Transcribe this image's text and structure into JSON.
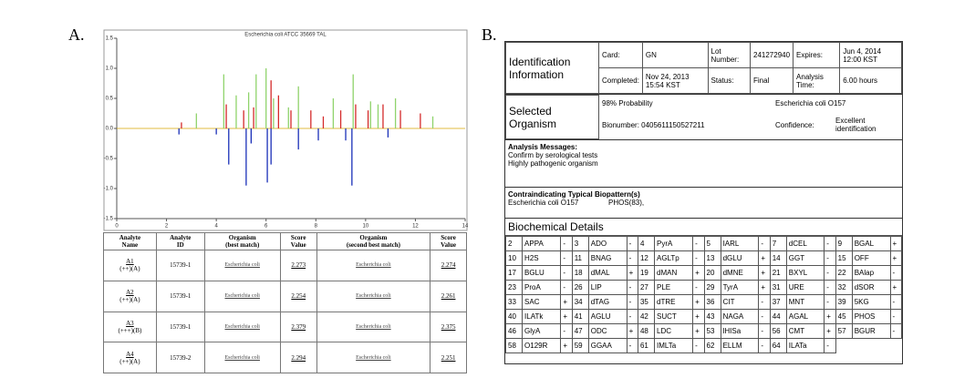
{
  "panel_a_label": "A.",
  "panel_b_label": "B.",
  "chart_data": {
    "type": "bar",
    "title": "Escherichia coli ATCC 35669 TAL",
    "xlim": [
      0,
      14
    ],
    "xticks": [
      0,
      2,
      4,
      6,
      8,
      10,
      12,
      14
    ],
    "ylim": [
      -1.5,
      1.5
    ],
    "yticks": [
      {
        "value": 1.5,
        "label": "1.5"
      },
      {
        "value": 1,
        "label": "1.0"
      },
      {
        "value": 0.5,
        "label": "0.5"
      },
      {
        "value": 0,
        "label": "0.0"
      },
      {
        "value": -0.5,
        "label": "-0.5"
      },
      {
        "value": -1,
        "label": "-1.0"
      },
      {
        "value": -1.5,
        "label": "-1.5"
      }
    ],
    "series": [
      {
        "color": "#8fd36b",
        "x": [
          3.2,
          4.3,
          4.8,
          5.3,
          5.6,
          6.0,
          6.3,
          6.9,
          7.3,
          8.7,
          9.5,
          10.2,
          10.5,
          11.2,
          12.7
        ],
        "values": [
          0.25,
          0.9,
          0.55,
          0.6,
          0.9,
          1.0,
          0.5,
          0.35,
          0.7,
          0.5,
          0.9,
          0.45,
          0.4,
          0.5,
          0.2
        ]
      },
      {
        "color": "#d42a2a",
        "x": [
          2.6,
          4.4,
          5.1,
          5.5,
          6.2,
          6.5,
          7.0,
          7.8,
          8.3,
          9.0,
          9.6,
          10.1,
          10.7,
          11.4,
          12.2
        ],
        "values": [
          0.1,
          0.4,
          0.3,
          0.35,
          0.8,
          0.55,
          0.3,
          0.3,
          0.2,
          0.3,
          0.4,
          0.3,
          0.4,
          0.3,
          0.25
        ]
      },
      {
        "color": "#1a2fb8",
        "x": [
          2.5,
          4.0,
          4.5,
          5.2,
          5.4,
          6.05,
          6.2,
          7.3,
          8.1,
          9.2,
          9.45,
          10.9
        ],
        "values": [
          -0.1,
          -0.1,
          -0.6,
          -0.95,
          -0.25,
          -0.9,
          -0.6,
          -0.35,
          -0.2,
          -0.2,
          -0.95,
          -0.15
        ]
      }
    ]
  },
  "table_a": {
    "headers": [
      [
        "Analyte",
        "Name"
      ],
      [
        "Analyte",
        "ID"
      ],
      [
        "Organism",
        "(best match)"
      ],
      [
        "Score",
        "Value"
      ],
      [
        "Organism",
        "(second best match)"
      ],
      [
        "Score",
        "Value"
      ]
    ],
    "rows": [
      [
        "A1",
        "(++)(A)",
        "15739-1",
        "Escherichia coli",
        "2.273",
        "Escherichia coli",
        "2.274"
      ],
      [
        "A2",
        "(++)(A)",
        "15739-1",
        "Escherichia coli",
        "2.254",
        "Escherichia coli",
        "2.261"
      ],
      [
        "A3",
        "(+++)(B)",
        "15739-1",
        "Escherichia coli",
        "2.379",
        "Escherichia coli",
        "2.375"
      ],
      [
        "A4",
        "(++)(A)",
        "15739-2",
        "Escherichia coli",
        "2.294",
        "Escherichia coli",
        "2.251"
      ]
    ]
  },
  "report": {
    "id_info": {
      "heading": "Identification Information",
      "fields": [
        [
          "Card:",
          "GN",
          "Lot Number:",
          "241272940",
          "Expires:",
          "Jun 4, 2014 12:00 KST"
        ],
        [
          "Completed:",
          "Nov 24, 2013 15:54 KST",
          "Status:",
          "Final",
          "Analysis Time:",
          "6.00 hours"
        ]
      ]
    },
    "selected": {
      "heading": "Selected Organism",
      "probability": "98% Probability",
      "organism": "Escherichia coli O157",
      "bionumber": "Bionumber: 0405611150527211",
      "confidence_label": "Confidence:",
      "confidence": "Excellent identification"
    },
    "messages": {
      "heading": "Analysis Messages:",
      "lines": [
        "Confirm by serological tests",
        "Highly pathogenic organism"
      ]
    },
    "contra": {
      "heading": "Contraindicating Typical Biopattern(s)",
      "organism": "Escherichia coli O157",
      "pattern": "PHOS(83),"
    },
    "biochem": {
      "heading": "Biochemical Details",
      "rows": [
        [
          [
            2,
            "APPA",
            "-"
          ],
          [
            3,
            "ADO",
            "-"
          ],
          [
            4,
            "PyrA",
            "-"
          ],
          [
            5,
            "IARL",
            "-"
          ],
          [
            7,
            "dCEL",
            "-"
          ],
          [
            9,
            "BGAL",
            "+"
          ]
        ],
        [
          [
            10,
            "H2S",
            "-"
          ],
          [
            11,
            "BNAG",
            "-"
          ],
          [
            12,
            "AGLTp",
            "-"
          ],
          [
            13,
            "dGLU",
            "+"
          ],
          [
            14,
            "GGT",
            "-"
          ],
          [
            15,
            "OFF",
            "+"
          ]
        ],
        [
          [
            17,
            "BGLU",
            "-"
          ],
          [
            18,
            "dMAL",
            "+"
          ],
          [
            19,
            "dMAN",
            "+"
          ],
          [
            20,
            "dMNE",
            "+"
          ],
          [
            21,
            "BXYL",
            "-"
          ],
          [
            22,
            "BAlap",
            "-"
          ]
        ],
        [
          [
            23,
            "ProA",
            "-"
          ],
          [
            26,
            "LIP",
            "-"
          ],
          [
            27,
            "PLE",
            "-"
          ],
          [
            29,
            "TyrA",
            "+"
          ],
          [
            31,
            "URE",
            "-"
          ],
          [
            32,
            "dSOR",
            "+"
          ]
        ],
        [
          [
            33,
            "SAC",
            "+"
          ],
          [
            34,
            "dTAG",
            "-"
          ],
          [
            35,
            "dTRE",
            "+"
          ],
          [
            36,
            "CIT",
            "-"
          ],
          [
            37,
            "MNT",
            "-"
          ],
          [
            39,
            "5KG",
            "-"
          ]
        ],
        [
          [
            40,
            "ILATk",
            "+"
          ],
          [
            41,
            "AGLU",
            "-"
          ],
          [
            42,
            "SUCT",
            "+"
          ],
          [
            43,
            "NAGA",
            "-"
          ],
          [
            44,
            "AGAL",
            "+"
          ],
          [
            45,
            "PHOS",
            "-"
          ]
        ],
        [
          [
            46,
            "GlyA",
            "-"
          ],
          [
            47,
            "ODC",
            "+"
          ],
          [
            48,
            "LDC",
            "+"
          ],
          [
            53,
            "lHISa",
            "-"
          ],
          [
            56,
            "CMT",
            "+"
          ],
          [
            57,
            "BGUR",
            "-"
          ]
        ],
        [
          [
            58,
            "O129R",
            "+"
          ],
          [
            59,
            "GGAA",
            "-"
          ],
          [
            61,
            "IMLTa",
            "-"
          ],
          [
            62,
            "ELLM",
            "-"
          ],
          [
            64,
            "ILATa",
            "-"
          ]
        ]
      ]
    }
  }
}
